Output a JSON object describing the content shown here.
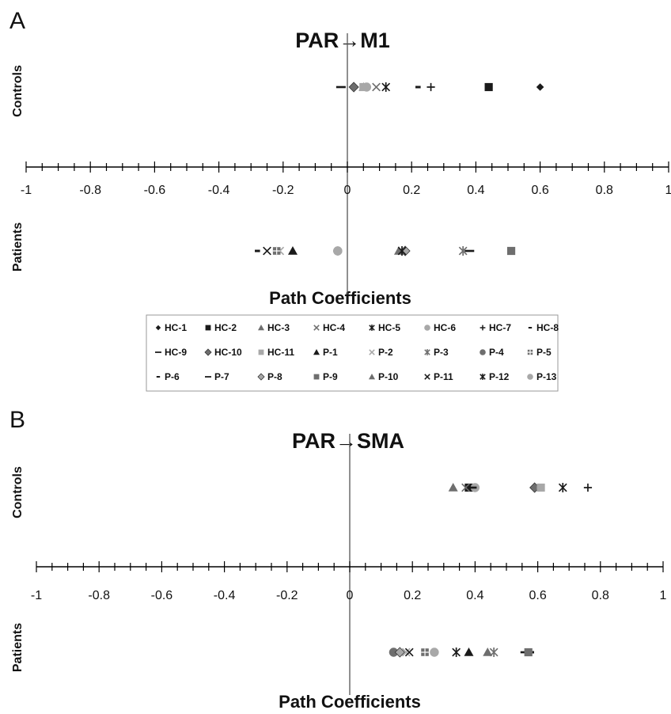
{
  "colors": {
    "dark": "#1a1a1a",
    "mid": "#6e6e6e",
    "light": "#a8a8a8"
  },
  "legend": [
    {
      "name": "HC-1",
      "marker": "diamond-small",
      "color": "dark"
    },
    {
      "name": "HC-2",
      "marker": "square",
      "color": "dark"
    },
    {
      "name": "HC-3",
      "marker": "triangle",
      "color": "mid"
    },
    {
      "name": "HC-4",
      "marker": "x",
      "color": "mid"
    },
    {
      "name": "HC-5",
      "marker": "xstar",
      "color": "dark"
    },
    {
      "name": "HC-6",
      "marker": "circle",
      "color": "light"
    },
    {
      "name": "HC-7",
      "marker": "plus",
      "color": "dark"
    },
    {
      "name": "HC-8",
      "marker": "dash-short",
      "color": "dark"
    },
    {
      "name": "HC-9",
      "marker": "dash-long",
      "color": "dark"
    },
    {
      "name": "HC-10",
      "marker": "diamond",
      "color": "mid"
    },
    {
      "name": "HC-11",
      "marker": "square",
      "color": "light"
    },
    {
      "name": "P-1",
      "marker": "triangle",
      "color": "dark"
    },
    {
      "name": "P-2",
      "marker": "x",
      "color": "light"
    },
    {
      "name": "P-3",
      "marker": "xstar",
      "color": "mid"
    },
    {
      "name": "P-4",
      "marker": "circle",
      "color": "mid"
    },
    {
      "name": "P-5",
      "marker": "plus-box",
      "color": "mid"
    },
    {
      "name": "P-6",
      "marker": "dash-short",
      "color": "dark"
    },
    {
      "name": "P-7",
      "marker": "dash-long",
      "color": "dark"
    },
    {
      "name": "P-8",
      "marker": "diamond",
      "color": "light"
    },
    {
      "name": "P-9",
      "marker": "square",
      "color": "mid"
    },
    {
      "name": "P-10",
      "marker": "triangle",
      "color": "mid"
    },
    {
      "name": "P-11",
      "marker": "x",
      "color": "dark"
    },
    {
      "name": "P-12",
      "marker": "xstar",
      "color": "dark"
    },
    {
      "name": "P-13",
      "marker": "circle",
      "color": "light"
    }
  ],
  "chart_data": [
    {
      "type": "scatter",
      "panel": "A",
      "title": "PAR→M1",
      "xlabel": "Path Coefficients",
      "row_labels": [
        "Controls",
        "Patients"
      ],
      "xlim": [
        -1,
        1
      ],
      "ticks": [
        "-1",
        "-0.8",
        "-0.6",
        "-0.4",
        "-0.2",
        "0",
        "0.2",
        "0.4",
        "0.6",
        "0.8",
        "1"
      ],
      "controls": [
        {
          "name": "HC-1",
          "x": 0.6
        },
        {
          "name": "HC-2",
          "x": 0.44
        },
        {
          "name": "HC-3",
          "x": 0.05
        },
        {
          "name": "HC-4",
          "x": 0.09
        },
        {
          "name": "HC-5",
          "x": 0.12
        },
        {
          "name": "HC-6",
          "x": 0.06
        },
        {
          "name": "HC-7",
          "x": 0.26
        },
        {
          "name": "HC-8",
          "x": 0.22
        },
        {
          "name": "HC-9",
          "x": -0.02
        },
        {
          "name": "HC-10",
          "x": 0.02
        },
        {
          "name": "HC-11",
          "x": 0.05
        }
      ],
      "patients": [
        {
          "name": "P-1",
          "x": -0.17
        },
        {
          "name": "P-2",
          "x": -0.21
        },
        {
          "name": "P-3",
          "x": 0.36
        },
        {
          "name": "P-4",
          "x": -0.03
        },
        {
          "name": "P-5",
          "x": -0.22
        },
        {
          "name": "P-6",
          "x": -0.28
        },
        {
          "name": "P-7",
          "x": 0.38
        },
        {
          "name": "P-8",
          "x": 0.18
        },
        {
          "name": "P-9",
          "x": 0.51
        },
        {
          "name": "P-10",
          "x": 0.16
        },
        {
          "name": "P-11",
          "x": -0.25
        },
        {
          "name": "P-12",
          "x": 0.17
        },
        {
          "name": "P-13",
          "x": -0.03
        }
      ]
    },
    {
      "type": "scatter",
      "panel": "B",
      "title": "PAR→SMA",
      "xlabel": "Path Coefficients",
      "row_labels": [
        "Controls",
        "Patients"
      ],
      "xlim": [
        -1,
        1
      ],
      "ticks": [
        "-1",
        "-0.8",
        "-0.6",
        "-0.4",
        "-0.2",
        "0",
        "0.2",
        "0.4",
        "0.6",
        "0.8",
        "1"
      ],
      "controls": [
        {
          "name": "HC-1",
          "x": 0.38
        },
        {
          "name": "HC-2",
          "x": 0.38
        },
        {
          "name": "HC-3",
          "x": 0.33
        },
        {
          "name": "HC-4",
          "x": 0.37
        },
        {
          "name": "HC-5",
          "x": 0.68
        },
        {
          "name": "HC-6",
          "x": 0.4
        },
        {
          "name": "HC-7",
          "x": 0.76
        },
        {
          "name": "HC-8",
          "x": 0.6
        },
        {
          "name": "HC-9",
          "x": 0.39
        },
        {
          "name": "HC-10",
          "x": 0.59
        },
        {
          "name": "HC-11",
          "x": 0.61
        }
      ],
      "patients": [
        {
          "name": "P-1",
          "x": 0.38
        },
        {
          "name": "P-2",
          "x": 0.18
        },
        {
          "name": "P-3",
          "x": 0.46
        },
        {
          "name": "P-4",
          "x": 0.14
        },
        {
          "name": "P-5",
          "x": 0.24
        },
        {
          "name": "P-6",
          "x": 0.58
        },
        {
          "name": "P-7",
          "x": 0.56
        },
        {
          "name": "P-8",
          "x": 0.16
        },
        {
          "name": "P-9",
          "x": 0.57
        },
        {
          "name": "P-10",
          "x": 0.44
        },
        {
          "name": "P-11",
          "x": 0.19
        },
        {
          "name": "P-12",
          "x": 0.34
        },
        {
          "name": "P-13",
          "x": 0.27
        }
      ]
    }
  ]
}
